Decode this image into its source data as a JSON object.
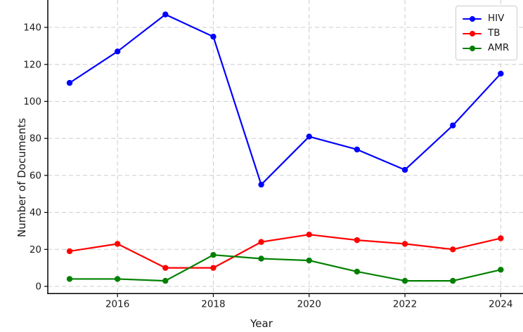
{
  "figure": {
    "xlabel": "Year",
    "ylabel": "Number of Documents"
  },
  "chart_data": {
    "type": "line",
    "title": "",
    "xlabel": "Year",
    "ylabel": "Number of Documents",
    "x": [
      2015,
      2016,
      2017,
      2018,
      2019,
      2020,
      2021,
      2022,
      2023,
      2024
    ],
    "series": [
      {
        "name": "HIV",
        "color": "#0000ff",
        "values": [
          110,
          127,
          147,
          135,
          55,
          81,
          74,
          63,
          87,
          115
        ]
      },
      {
        "name": "TB",
        "color": "#ff0000",
        "values": [
          19,
          23,
          10,
          10,
          24,
          28,
          25,
          23,
          20,
          26
        ]
      },
      {
        "name": "AMR",
        "color": "#008000",
        "values": [
          4,
          4,
          3,
          17,
          15,
          14,
          8,
          3,
          3,
          9
        ]
      }
    ],
    "xticks": [
      2016,
      2018,
      2020,
      2022,
      2024
    ],
    "yticks": [
      0,
      20,
      40,
      60,
      80,
      100,
      120,
      140
    ],
    "ylim": [
      -4,
      155
    ],
    "grid": true,
    "grid_style": "dashed",
    "legend_position": "upper right",
    "marker": "circle",
    "text_color": "#1a1a1a",
    "grid_color": "#cccccc",
    "spine_color": "#000000"
  }
}
